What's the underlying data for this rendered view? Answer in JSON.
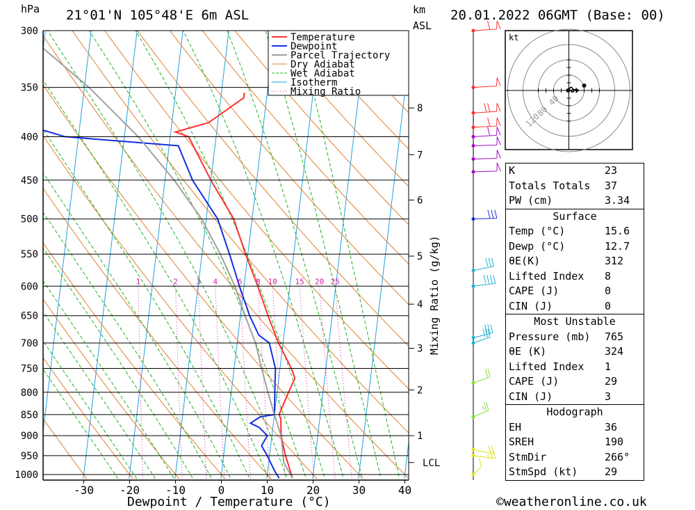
{
  "header": {
    "location": "21°01'N  105°48'E  6m  ASL",
    "datetime": "20.01.2022  06GMT  (Base: 00)",
    "unit_hpa": "hPa",
    "unit_km": "km",
    "unit_asl": "ASL"
  },
  "footer": {
    "copyright": "©weatheronline.co.uk"
  },
  "chart_data": {
    "type": "line",
    "title": "",
    "xlabel": "Dewpoint / Temperature (°C)",
    "ylabel": "hPa",
    "right_label": "Mixing Ratio (g/kg)",
    "x_ticks": [
      -30,
      -20,
      -10,
      0,
      10,
      20,
      30,
      40
    ],
    "pressure_levels": [
      300,
      350,
      400,
      450,
      500,
      550,
      600,
      650,
      700,
      750,
      800,
      850,
      900,
      950,
      1000
    ],
    "km_ticks": [
      {
        "label": "8",
        "p": 370
      },
      {
        "label": "7",
        "p": 420
      },
      {
        "label": "6",
        "p": 475
      },
      {
        "label": "5",
        "p": 553
      },
      {
        "label": "4",
        "p": 630
      },
      {
        "label": "3",
        "p": 710
      },
      {
        "label": "2",
        "p": 795
      },
      {
        "label": "1",
        "p": 900
      },
      {
        "label": "LCL",
        "p": 968
      }
    ],
    "mixing_ratio_labels": [
      "1",
      "2",
      "3",
      "4",
      "6",
      "8",
      "10",
      "15",
      "20",
      "25"
    ],
    "mixing_ratio_values": [
      1,
      2,
      3,
      4,
      6,
      8,
      10,
      15,
      20,
      25
    ],
    "legend": [
      "Temperature",
      "Dewpoint",
      "Parcel Trajectory",
      "Dry Adiabat",
      "Wet Adiabat",
      "Isotherm",
      "Mixing Ratio"
    ],
    "colors": {
      "temperature": "#ff3030",
      "dewpoint": "#1030e0",
      "parcel": "#a0a0a0",
      "dry_adiabat": "#e08030",
      "wet_adiabat": "#20b020",
      "isotherm": "#20a0e0",
      "mixing_ratio": "#d020a0"
    },
    "series": [
      {
        "name": "Temperature",
        "points": [
          [
            15.6,
            1010
          ],
          [
            13.5,
            950
          ],
          [
            12,
            900
          ],
          [
            11.5,
            860
          ],
          [
            11,
            850
          ],
          [
            12.5,
            800
          ],
          [
            13.5,
            770
          ],
          [
            12.5,
            750
          ],
          [
            9,
            700
          ],
          [
            6,
            650
          ],
          [
            3,
            600
          ],
          [
            -0.5,
            550
          ],
          [
            -4,
            500
          ],
          [
            -10,
            450
          ],
          [
            -16,
            400
          ],
          [
            -19,
            395
          ],
          [
            -12,
            385
          ],
          [
            -5,
            360
          ],
          [
            -5,
            355
          ]
        ]
      },
      {
        "name": "Dewpoint",
        "points": [
          [
            12.7,
            1010
          ],
          [
            11.5,
            990
          ],
          [
            9.5,
            950
          ],
          [
            8,
            925
          ],
          [
            9,
            900
          ],
          [
            7,
            880
          ],
          [
            5,
            870
          ],
          [
            7,
            855
          ],
          [
            10,
            850
          ],
          [
            9.5,
            800
          ],
          [
            9,
            750
          ],
          [
            7,
            700
          ],
          [
            4.5,
            685
          ],
          [
            2,
            650
          ],
          [
            -1,
            600
          ],
          [
            -4,
            550
          ],
          [
            -7.5,
            500
          ],
          [
            -14,
            450
          ],
          [
            -18,
            410
          ],
          [
            -43,
            400
          ],
          [
            -50,
            390
          ],
          [
            -56,
            380
          ],
          [
            -64,
            350
          ],
          [
            -84,
            310
          ],
          [
            -88,
            300
          ]
        ]
      },
      {
        "name": "Parcel Trajectory",
        "points": [
          [
            15.6,
            1010
          ],
          [
            13.3,
            968
          ],
          [
            12,
            900
          ],
          [
            10,
            850
          ],
          [
            8,
            800
          ],
          [
            6,
            750
          ],
          [
            4,
            700
          ],
          [
            1,
            650
          ],
          [
            -2,
            600
          ],
          [
            -6,
            550
          ],
          [
            -11,
            500
          ],
          [
            -18,
            450
          ],
          [
            -27,
            400
          ],
          [
            -39,
            350
          ],
          [
            -55,
            300
          ]
        ]
      }
    ],
    "wind_barbs": [
      {
        "p": 300,
        "dir": 260,
        "kt": 60
      },
      {
        "p": 350,
        "dir": 260,
        "kt": 50
      },
      {
        "p": 375,
        "dir": 260,
        "kt": 70
      },
      {
        "p": 390,
        "dir": 260,
        "kt": 60
      },
      {
        "p": 400,
        "dir": 260,
        "kt": 60
      },
      {
        "p": 410,
        "dir": 265,
        "kt": 50
      },
      {
        "p": 425,
        "dir": 265,
        "kt": 50
      },
      {
        "p": 440,
        "dir": 265,
        "kt": 50
      },
      {
        "p": 500,
        "dir": 265,
        "kt": 30
      },
      {
        "p": 575,
        "dir": 240,
        "kt": 30
      },
      {
        "p": 600,
        "dir": 250,
        "kt": 40
      },
      {
        "p": 690,
        "dir": 235,
        "kt": 30
      },
      {
        "p": 700,
        "dir": 225,
        "kt": 30
      },
      {
        "p": 780,
        "dir": 225,
        "kt": 20
      },
      {
        "p": 855,
        "dir": 220,
        "kt": 25
      },
      {
        "p": 935,
        "dir": 300,
        "kt": 20
      },
      {
        "p": 950,
        "dir": 290,
        "kt": 25
      },
      {
        "p": 1000,
        "dir": 200,
        "kt": 10
      }
    ]
  },
  "hodograph": {
    "unit": "kt",
    "ring_labels": [
      "40",
      "80",
      "120"
    ],
    "trace": [
      [
        0,
        0
      ],
      [
        2,
        -6
      ],
      [
        6,
        -8
      ],
      [
        10,
        -4
      ],
      [
        12,
        2
      ],
      [
        8,
        4
      ],
      [
        4,
        0
      ],
      [
        12,
        -2
      ],
      [
        20,
        -2
      ]
    ]
  },
  "stats": {
    "basic": [
      {
        "label": "K",
        "value": "23"
      },
      {
        "label": "Totals Totals",
        "value": "37"
      },
      {
        "label": "PW (cm)",
        "value": "3.34"
      }
    ],
    "surface": {
      "title": "Surface",
      "rows": [
        {
          "label": "Temp (°C)",
          "value": "15.6"
        },
        {
          "label": "Dewp (°C)",
          "value": "12.7"
        },
        {
          "label": "θE(K)",
          "value": "312"
        },
        {
          "label": "Lifted Index",
          "value": "8"
        },
        {
          "label": "CAPE (J)",
          "value": "0"
        },
        {
          "label": "CIN (J)",
          "value": "0"
        }
      ]
    },
    "most_unstable": {
      "title": "Most Unstable",
      "rows": [
        {
          "label": "Pressure (mb)",
          "value": "765"
        },
        {
          "label": "θE (K)",
          "value": "324"
        },
        {
          "label": "Lifted Index",
          "value": "1"
        },
        {
          "label": "CAPE (J)",
          "value": "29"
        },
        {
          "label": "CIN (J)",
          "value": "3"
        }
      ]
    },
    "hodograph": {
      "title": "Hodograph",
      "rows": [
        {
          "label": "EH",
          "value": "36"
        },
        {
          "label": "SREH",
          "value": "190"
        },
        {
          "label": "StmDir",
          "value": "266°"
        },
        {
          "label": "StmSpd (kt)",
          "value": "29"
        }
      ]
    }
  }
}
